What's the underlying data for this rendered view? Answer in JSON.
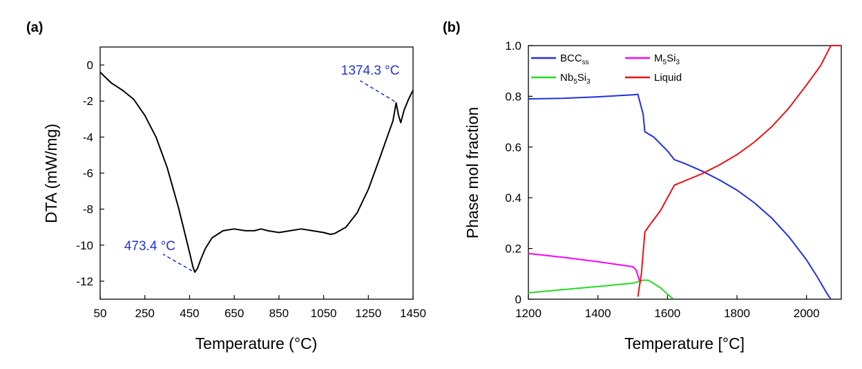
{
  "chart_data": [
    {
      "panel_label": "(a)",
      "type": "line",
      "xlabel": "Temperature (°C)",
      "ylabel": "DTA (mW/mg)",
      "xlim": [
        50,
        1450
      ],
      "ylim": [
        -13,
        1
      ],
      "xticks": [
        50,
        250,
        450,
        650,
        850,
        1050,
        1250,
        1450
      ],
      "yticks": [
        0,
        -2,
        -4,
        -6,
        -8,
        -10,
        -12
      ],
      "grid": false,
      "series": [
        {
          "color": "#000000",
          "x": [
            50,
            100,
            150,
            200,
            250,
            300,
            350,
            400,
            430,
            450,
            465,
            473.4,
            485,
            500,
            520,
            550,
            600,
            650,
            700,
            740,
            770,
            800,
            850,
            900,
            950,
            1000,
            1050,
            1080,
            1100,
            1150,
            1200,
            1250,
            1300,
            1340,
            1360,
            1374.3,
            1385,
            1395,
            1410,
            1430,
            1450
          ],
          "y": [
            -0.4,
            -1.0,
            -1.4,
            -1.9,
            -2.8,
            -4.0,
            -5.7,
            -7.9,
            -9.4,
            -10.4,
            -11.2,
            -11.5,
            -11.3,
            -10.8,
            -10.2,
            -9.6,
            -9.2,
            -9.1,
            -9.2,
            -9.2,
            -9.1,
            -9.2,
            -9.3,
            -9.2,
            -9.1,
            -9.2,
            -9.3,
            -9.4,
            -9.35,
            -9.0,
            -8.2,
            -6.9,
            -5.2,
            -3.8,
            -3.1,
            -2.1,
            -2.8,
            -3.2,
            -2.5,
            -1.9,
            -1.4
          ]
        }
      ],
      "annotations": [
        {
          "text": "473.4 °C",
          "x": 473.4,
          "y": -11.5
        },
        {
          "text": "1374.3 °C",
          "x": 1374.3,
          "y": -2.1
        }
      ]
    },
    {
      "panel_label": "(b)",
      "type": "line",
      "xlabel": "Temperature [°C]",
      "ylabel": "Phase mol fraction",
      "xlim": [
        1200,
        2100
      ],
      "ylim": [
        0,
        1.0
      ],
      "xticks": [
        1200,
        1400,
        1600,
        1800,
        2000
      ],
      "yticks": [
        0,
        0.2,
        0.4,
        0.6,
        0.8,
        1.0
      ],
      "ytick_labels": [
        "0",
        "0.2",
        "0.4",
        "0.6",
        "0.8",
        "1.0"
      ],
      "grid": false,
      "legend_position": "top-left, two columns",
      "series": [
        {
          "name": "BCC",
          "name_sub": "ss",
          "color": "#1f2fe0",
          "x": [
            1200,
            1300,
            1400,
            1500,
            1515,
            1530,
            1535,
            1560,
            1600,
            1620,
            1650,
            1700,
            1750,
            1800,
            1850,
            1900,
            1950,
            2000,
            2030,
            2060,
            2070
          ],
          "y": [
            0.79,
            0.792,
            0.798,
            0.806,
            0.808,
            0.73,
            0.66,
            0.64,
            0.585,
            0.55,
            0.535,
            0.505,
            0.47,
            0.43,
            0.38,
            0.32,
            0.245,
            0.155,
            0.09,
            0.02,
            0.0
          ]
        },
        {
          "name": "M",
          "name_sub": "5",
          "name_mid": "Si",
          "name_sub2": "3",
          "color": "#ff00ff",
          "x": [
            1200,
            1300,
            1400,
            1500,
            1510,
            1520
          ],
          "y": [
            0.18,
            0.165,
            0.148,
            0.128,
            0.115,
            0.07
          ]
        },
        {
          "name": "Nb",
          "name_sub": "5",
          "name_mid": "Si",
          "name_sub2": "3",
          "color": "#22dd22",
          "x": [
            1200,
            1300,
            1400,
            1500,
            1530,
            1545,
            1560,
            1580,
            1600,
            1615
          ],
          "y": [
            0.025,
            0.038,
            0.05,
            0.063,
            0.075,
            0.075,
            0.062,
            0.045,
            0.02,
            0.003
          ]
        },
        {
          "name": "Liquid",
          "color": "#ee1111",
          "x": [
            1515,
            1525,
            1535,
            1545,
            1580,
            1620,
            1700,
            1750,
            1800,
            1850,
            1900,
            1950,
            2000,
            2040,
            2070,
            2100
          ],
          "y": [
            0.01,
            0.1,
            0.265,
            0.285,
            0.35,
            0.45,
            0.495,
            0.53,
            0.57,
            0.62,
            0.68,
            0.755,
            0.845,
            0.92,
            1.0,
            1.0
          ]
        }
      ]
    }
  ]
}
